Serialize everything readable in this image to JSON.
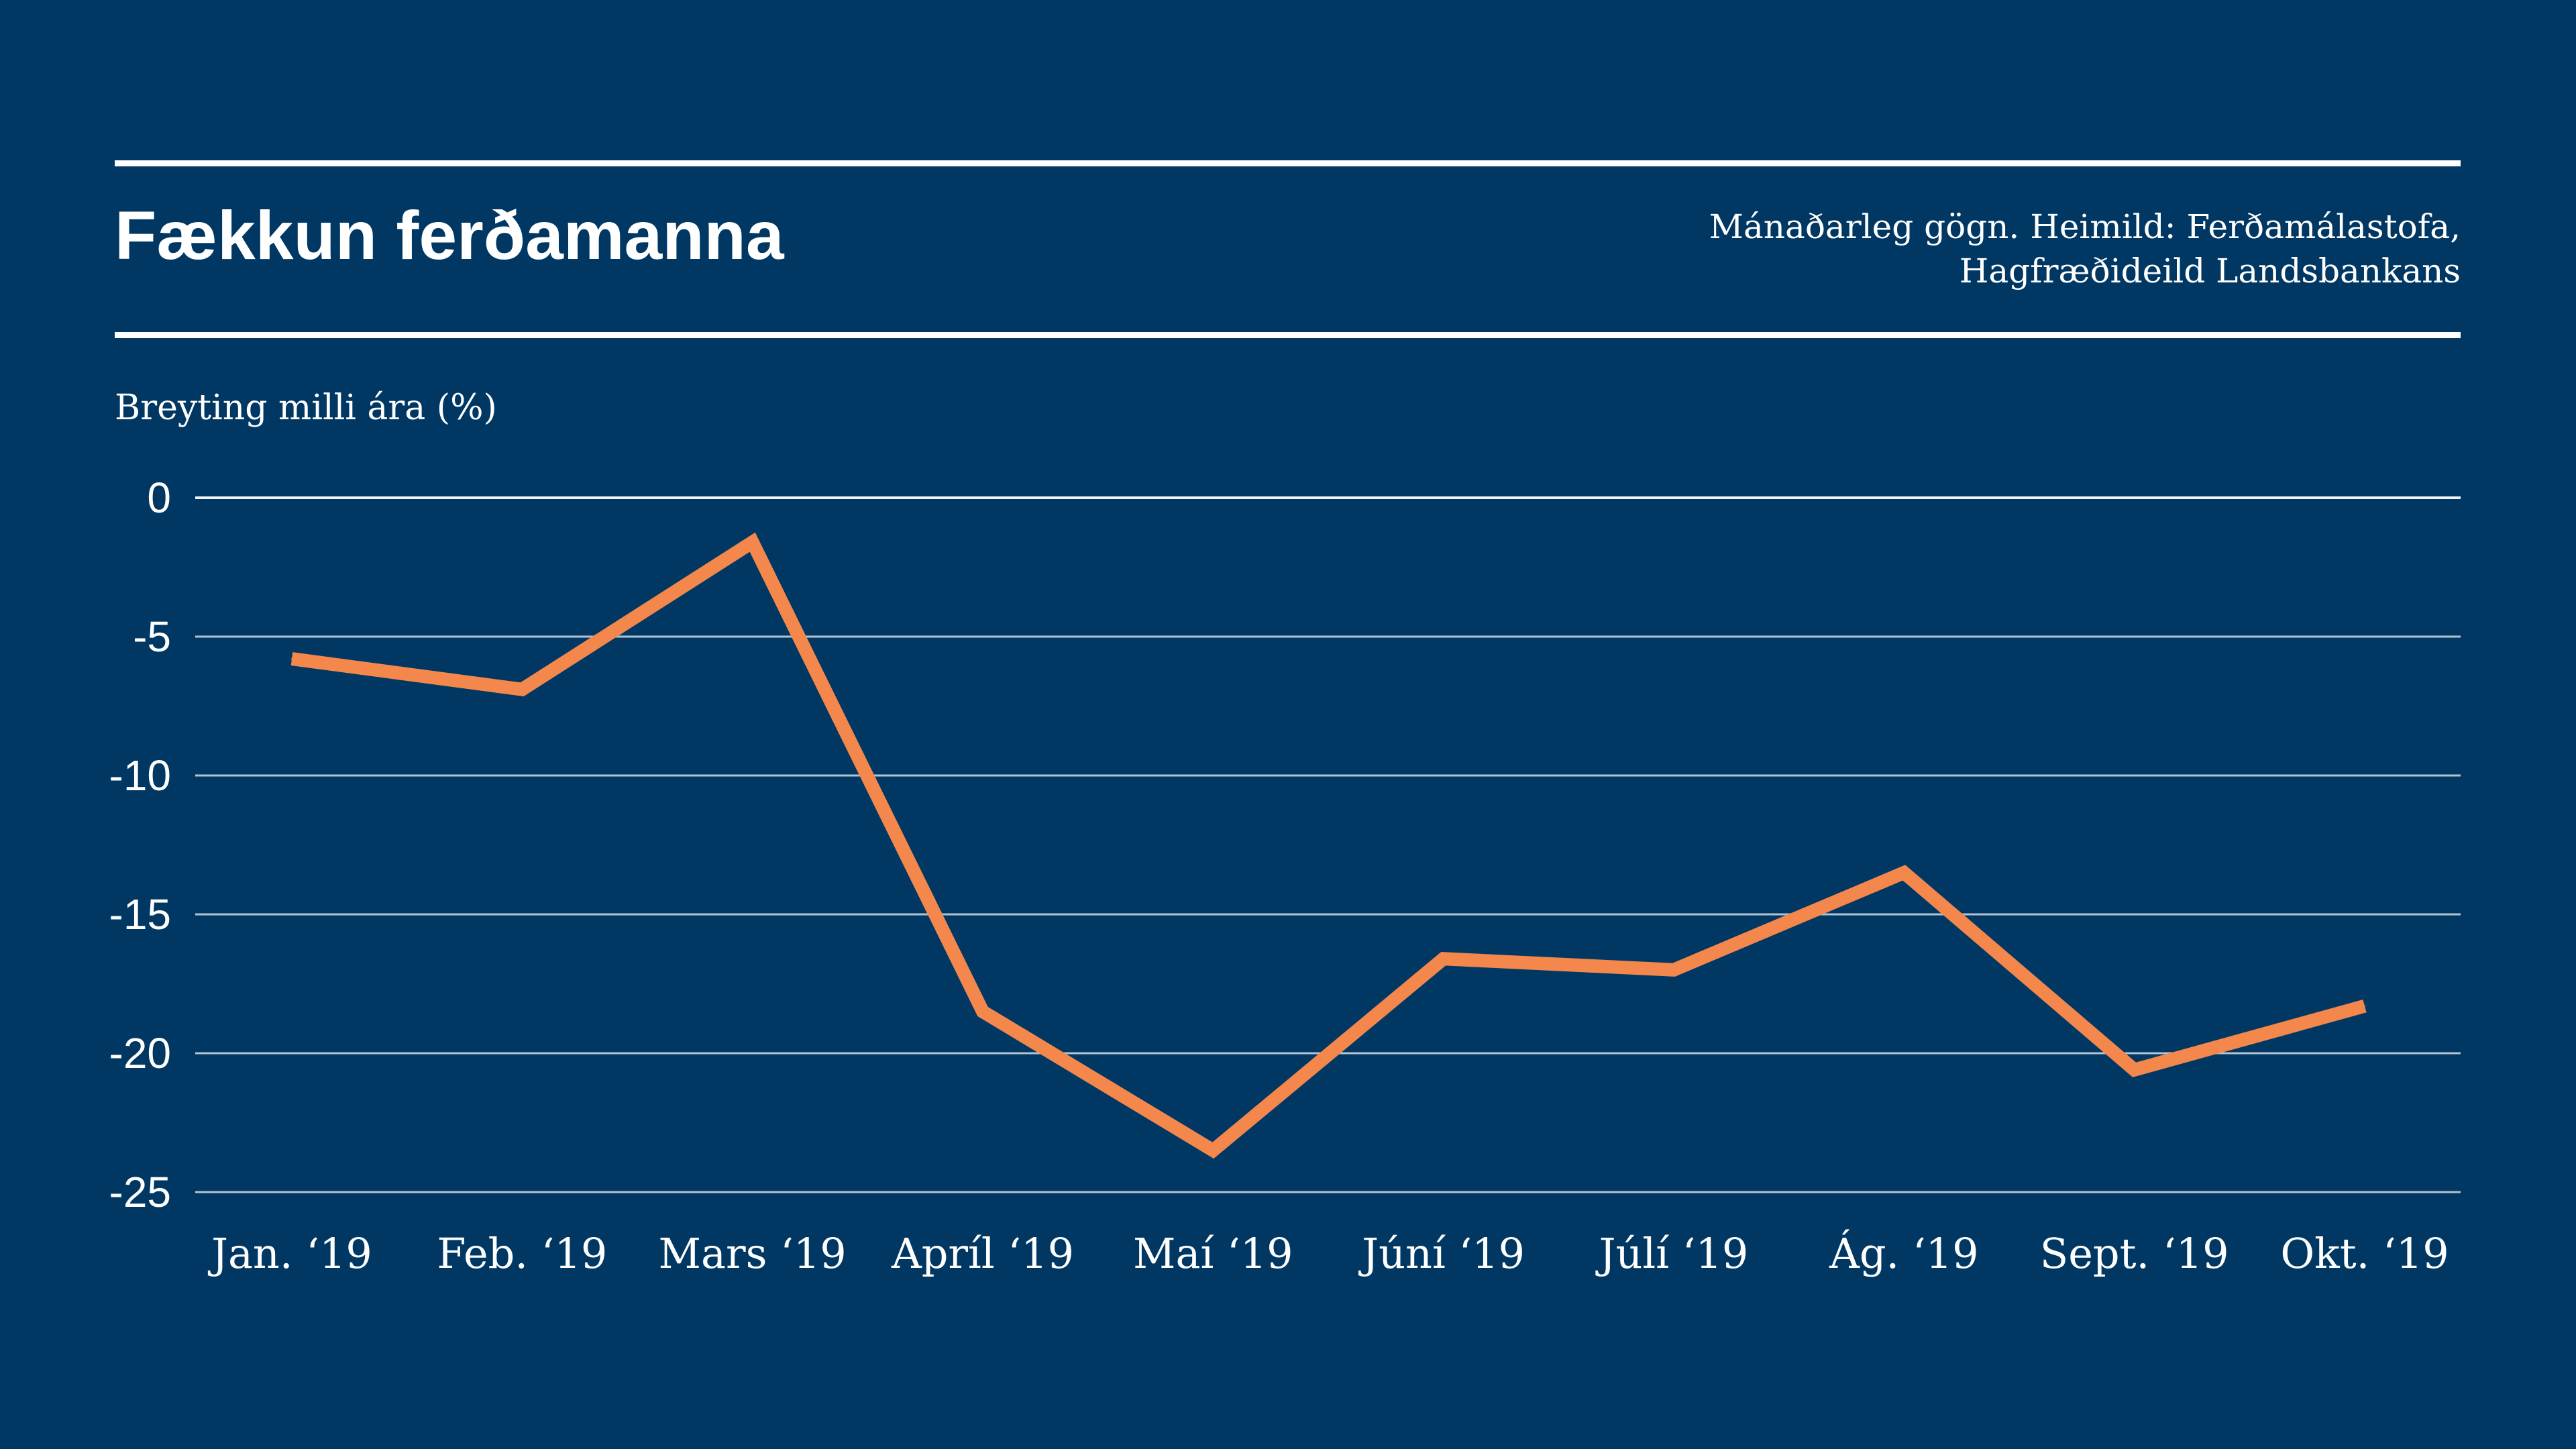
{
  "header": {
    "title": "Fækkun ferðamanna",
    "source_lines": [
      "Mánaðarleg gögn. Heimild: Ferðamálastofa,",
      "Hagfræðideild Landsbankans"
    ]
  },
  "colors": {
    "background": "#013863",
    "line": "#f4874b",
    "text": "#ffffff",
    "grid": "#ffffff"
  },
  "chart_data": {
    "type": "line",
    "title": "Fækkun ferðamanna",
    "ylabel": "Breyting milli ára (%)",
    "xlabel": "",
    "categories": [
      "Jan. ‘19",
      "Feb. ‘19",
      "Mars ‘19",
      "Apríl ‘19",
      "Maí ‘19",
      "Júní ‘19",
      "Júlí ‘19",
      "Ág. ‘19",
      "Sept. ‘19",
      "Okt. ‘19"
    ],
    "series": [
      {
        "values": [
          -5.8,
          -6.9,
          -1.6,
          -18.5,
          -23.5,
          -16.6,
          -17.0,
          -13.5,
          -20.6,
          -18.3
        ]
      }
    ],
    "ylim": [
      -25,
      0
    ],
    "yticks": [
      0,
      -5,
      -10,
      -15,
      -20,
      -25
    ],
    "ytick_labels": [
      "0",
      "-5",
      "-10",
      "-15",
      "-20",
      "-25"
    ],
    "grid": true,
    "legend": "none"
  }
}
